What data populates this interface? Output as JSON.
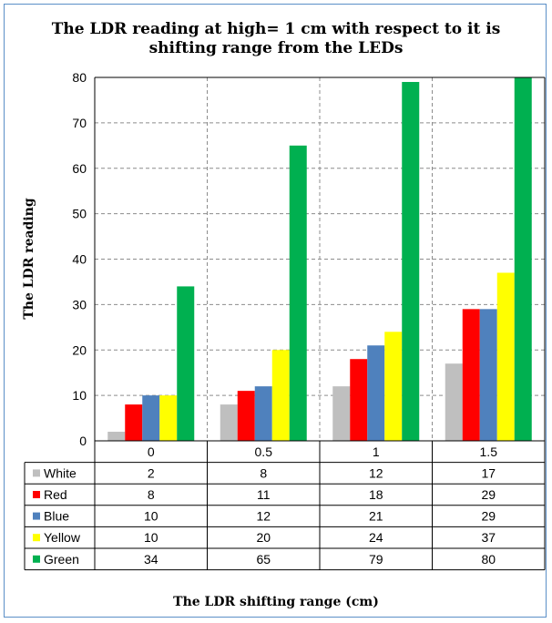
{
  "chart_data": {
    "type": "bar",
    "title_lines": [
      "The LDR reading at high= 1 cm with respect to it is",
      "shifting range from the LEDs"
    ],
    "xlabel": "The LDR shifting range (cm)",
    "ylabel": "The LDR reading",
    "categories": [
      "0",
      "0.5",
      "1",
      "1.5"
    ],
    "ylim": [
      0,
      80
    ],
    "yticks": [
      0,
      10,
      20,
      30,
      40,
      50,
      60,
      70,
      80
    ],
    "grid": true,
    "legend": "data-table",
    "series": [
      {
        "name": "White",
        "color": "#bfbfbf",
        "values": [
          2,
          8,
          12,
          17
        ]
      },
      {
        "name": "Red",
        "color": "#ff0000",
        "values": [
          8,
          11,
          18,
          29
        ]
      },
      {
        "name": "Blue",
        "color": "#4f81bd",
        "values": [
          10,
          12,
          21,
          29
        ]
      },
      {
        "name": "Yellow",
        "color": "#ffff00",
        "values": [
          10,
          20,
          24,
          37
        ]
      },
      {
        "name": "Green",
        "color": "#00b050",
        "values": [
          34,
          65,
          79,
          80
        ]
      }
    ]
  }
}
